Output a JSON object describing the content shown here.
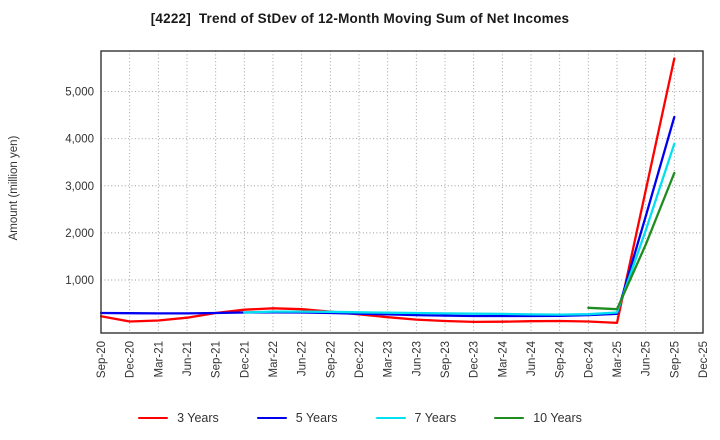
{
  "header": {
    "title": "[4222]  Trend of StDev of 12-Month Moving Sum of Net Incomes"
  },
  "chart_data": {
    "type": "line",
    "title": "[4222]  Trend of StDev of 12-Month Moving Sum of Net Incomes",
    "xlabel": "",
    "ylabel": "Amount (million yen)",
    "grid": true,
    "legend_position": "bottom",
    "ylim": [
      -125,
      5860
    ],
    "yticks": [
      {
        "v": 1000,
        "label": "1,000"
      },
      {
        "v": 2000,
        "label": "2,000"
      },
      {
        "v": 3000,
        "label": "3,000"
      },
      {
        "v": 4000,
        "label": "4,000"
      },
      {
        "v": 5000,
        "label": "5,000"
      }
    ],
    "categories": [
      "Sep-20",
      "Dec-20",
      "Mar-21",
      "Jun-21",
      "Sep-21",
      "Dec-21",
      "Mar-22",
      "Jun-22",
      "Sep-22",
      "Dec-22",
      "Mar-23",
      "Jun-23",
      "Sep-23",
      "Dec-23",
      "Mar-24",
      "Jun-24",
      "Sep-24",
      "Dec-24",
      "Mar-25",
      "Jun-25",
      "Sep-25",
      "Dec-25"
    ],
    "series": [
      {
        "name": "3 Years",
        "color": "#ff0000",
        "values": [
          230,
          120,
          140,
          200,
          300,
          370,
          400,
          380,
          330,
          270,
          210,
          160,
          130,
          110,
          115,
          125,
          130,
          120,
          90,
          2900,
          5700,
          null
        ]
      },
      {
        "name": "5 Years",
        "color": "#0000ee",
        "values": [
          300,
          295,
          290,
          290,
          300,
          310,
          315,
          310,
          300,
          285,
          270,
          255,
          245,
          235,
          235,
          235,
          240,
          255,
          280,
          2350,
          4460,
          null
        ]
      },
      {
        "name": "7 Years",
        "color": "#00e0f0",
        "values": [
          null,
          null,
          null,
          null,
          null,
          310,
          330,
          330,
          325,
          315,
          305,
          300,
          290,
          285,
          280,
          270,
          265,
          275,
          310,
          2050,
          3890,
          null
        ]
      },
      {
        "name": "10 Years",
        "color": "#1f8c1f",
        "values": [
          null,
          null,
          null,
          null,
          null,
          null,
          null,
          null,
          null,
          null,
          null,
          null,
          null,
          null,
          null,
          null,
          null,
          410,
          380,
          1750,
          3270,
          null
        ]
      }
    ],
    "axis_color": "#333333",
    "grid_color": "#999999",
    "tick_color": "#333333"
  }
}
